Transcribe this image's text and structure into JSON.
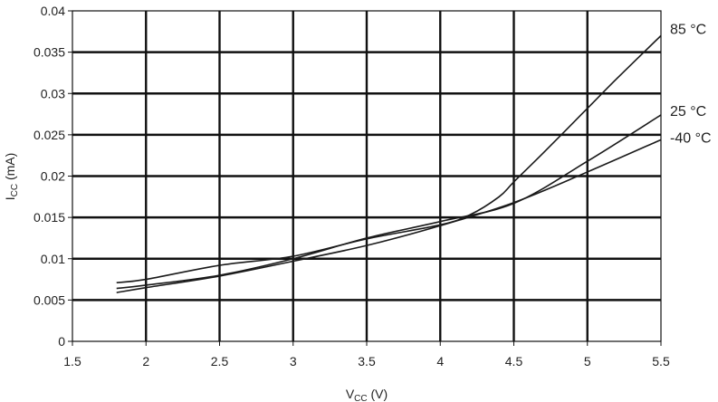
{
  "chart_data": {
    "type": "line",
    "xlabel": {
      "main": "V",
      "sub": "CC",
      "unit": " (V)"
    },
    "ylabel": {
      "main": "I",
      "sub": "CC",
      "unit": " (mA)"
    },
    "xlim": [
      1.5,
      5.5
    ],
    "ylim": [
      0,
      0.04
    ],
    "x_ticks": [
      "1.5",
      "2",
      "2.5",
      "3",
      "3.5",
      "4",
      "4.5",
      "5",
      "5.5"
    ],
    "y_ticks": [
      "0",
      "0.005",
      "0.01",
      "0.015",
      "0.02",
      "0.025",
      "0.03",
      "0.035",
      "0.04"
    ],
    "grid": true,
    "series": [
      {
        "name": "85 °C",
        "x": [
          1.8,
          2.0,
          2.5,
          3.0,
          3.5,
          4.0,
          4.2,
          4.4,
          4.5,
          4.7,
          5.0,
          5.2,
          5.5
        ],
        "y": [
          0.0071,
          0.0075,
          0.0092,
          0.0103,
          0.0124,
          0.0141,
          0.0153,
          0.0175,
          0.0193,
          0.0228,
          0.0282,
          0.0318,
          0.037
        ]
      },
      {
        "name": "25 °C",
        "x": [
          1.8,
          2.0,
          2.5,
          3.0,
          3.5,
          4.0,
          4.5,
          5.0,
          5.5
        ],
        "y": [
          0.0064,
          0.0068,
          0.008,
          0.01,
          0.0125,
          0.0145,
          0.0167,
          0.0218,
          0.0274
        ]
      },
      {
        "name": "-40 °C",
        "x": [
          1.8,
          2.0,
          2.5,
          3.0,
          3.5,
          4.0,
          4.5,
          5.0,
          5.5
        ],
        "y": [
          0.0059,
          0.0065,
          0.0079,
          0.0097,
          0.0116,
          0.014,
          0.0168,
          0.0205,
          0.0244
        ]
      }
    ]
  }
}
